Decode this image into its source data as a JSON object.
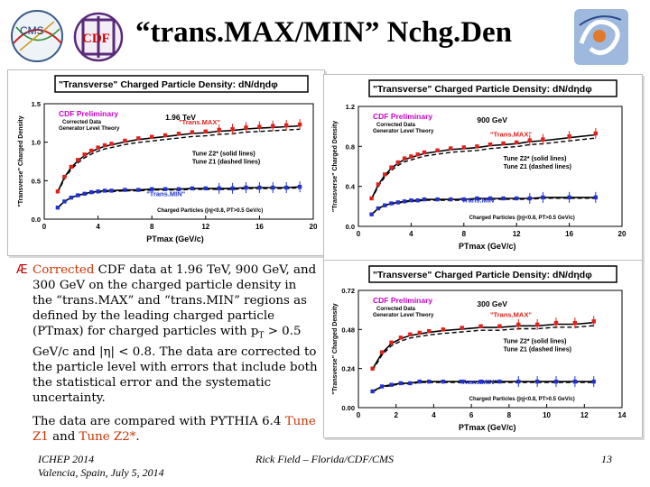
{
  "slide": {
    "title": "“trans.MAX/MIN” Nchg.Den",
    "logos": {
      "cms": "CMS",
      "cdf": "CDF"
    }
  },
  "body": {
    "bullet_symbol": "Æ",
    "p1_lead": "Corrected",
    "p1_rest": " CDF data at 1.96 TeV, 900 GeV, and 300 GeV on the charged particle density in the “trans.MAX” and “trans.MIN” regions as defined by the leading charged particle (PTmax) for charged particles with p",
    "p1_sub": "T",
    "p1_tail": " > 0.5 GeV/c and |η| < 0.8. The data are corrected to the particle level with errors that include both the statistical error and the systematic uncertainty.",
    "p2_lead": "The data are compared with PYTHIA 6.4 ",
    "p2_tune1": "Tune Z1",
    "p2_and": " and ",
    "p2_tune2": "Tune Z2*",
    "p2_end": "."
  },
  "footer": {
    "left_line1": "ICHEP 2014",
    "left_line2": "Valencia, Spain, July 5, 2014",
    "center": "Rick Field – Florida/CDF/CMS",
    "page": "13"
  },
  "colors": {
    "max": "#e0201a",
    "min": "#2233cc",
    "prelim": "#cc00cc",
    "frame": "#000000"
  },
  "chart_data": [
    {
      "type": "line",
      "title": "\"Transverse\" Charged Particle Density: dN/dηdφ",
      "energy": "1.96 TeV",
      "preliminary": "CDF Preliminary",
      "sub1": "Corrected Data",
      "sub2": "Generator Level Theory",
      "ylabel": "\"Transverse\" Charged Density",
      "xlabel": "PTmax  (GeV/c)",
      "xlim": [
        0,
        20
      ],
      "ylim": [
        0,
        1.5
      ],
      "xticks": [
        0,
        4,
        8,
        12,
        16,
        20
      ],
      "yticks": [
        0.0,
        0.5,
        1.0,
        1.5
      ],
      "ytick_labels": [
        "0.0",
        "0.5",
        "1.0",
        "1.5"
      ],
      "tune_solid": "Tune Z2* (solid lines)",
      "tune_dashed": "Tune Z1 (dashed lines)",
      "footnote": "Charged Particles (|η|<0.8, PT>0.5 GeV/c)",
      "label_max": "\"Trans.MAX\"",
      "label_min": "\"Trans.MIN\"",
      "series": [
        {
          "name": "\"Trans.MAX\"",
          "x": [
            1,
            1.5,
            2,
            2.5,
            3,
            3.5,
            4,
            4.5,
            5,
            6,
            7,
            8,
            9,
            10,
            11,
            12,
            13,
            14,
            15,
            16,
            17,
            18,
            19
          ],
          "y": [
            0.36,
            0.55,
            0.68,
            0.77,
            0.84,
            0.89,
            0.93,
            0.96,
            0.98,
            1.02,
            1.05,
            1.07,
            1.09,
            1.11,
            1.13,
            1.14,
            1.16,
            1.17,
            1.19,
            1.2,
            1.21,
            1.22,
            1.23
          ]
        },
        {
          "name": "\"Trans.MIN\"",
          "x": [
            1,
            1.5,
            2,
            2.5,
            3,
            3.5,
            4,
            4.5,
            5,
            6,
            7,
            8,
            9,
            10,
            11,
            12,
            13,
            14,
            15,
            16,
            17,
            18,
            19
          ],
          "y": [
            0.15,
            0.23,
            0.28,
            0.31,
            0.33,
            0.35,
            0.36,
            0.37,
            0.37,
            0.38,
            0.38,
            0.39,
            0.39,
            0.39,
            0.4,
            0.4,
            0.4,
            0.4,
            0.41,
            0.41,
            0.41,
            0.41,
            0.42
          ]
        }
      ]
    },
    {
      "type": "line",
      "title": "\"Transverse\" Charged Particle Density: dN/dηdφ",
      "energy": "900 GeV",
      "preliminary": "CDF Preliminary",
      "sub1": "Corrected Data",
      "sub2": "Generator Level Theory",
      "ylabel": "\"Transverse\" Charged Density",
      "xlabel": "PTmax  (GeV/c)",
      "xlim": [
        0,
        20
      ],
      "ylim": [
        0,
        1.2
      ],
      "xticks": [
        0,
        4,
        8,
        12,
        16,
        20
      ],
      "yticks": [
        0.0,
        0.4,
        0.8,
        1.2
      ],
      "ytick_labels": [
        "0.0",
        "0.4",
        "0.8",
        "1.2"
      ],
      "tune_solid": "Tune Z2* (solid lines)",
      "tune_dashed": "Tune Z1 (dashed lines)",
      "footnote": "Charged Particles (|η|<0.8, PT>0.5 GeV/c)",
      "label_max": "\"Trans.MAX\"",
      "label_min": "\"Trans.MIN\"",
      "series": [
        {
          "name": "\"Trans.MAX\"",
          "x": [
            1,
            1.5,
            2,
            2.5,
            3,
            3.5,
            4,
            4.5,
            5,
            6,
            7,
            8,
            9,
            10,
            11,
            12,
            13,
            14,
            16,
            18
          ],
          "y": [
            0.28,
            0.42,
            0.52,
            0.59,
            0.64,
            0.68,
            0.7,
            0.72,
            0.74,
            0.76,
            0.78,
            0.79,
            0.8,
            0.82,
            0.83,
            0.84,
            0.86,
            0.87,
            0.9,
            0.93
          ]
        },
        {
          "name": "\"Trans.MIN\"",
          "x": [
            1,
            1.5,
            2,
            2.5,
            3,
            3.5,
            4,
            4.5,
            5,
            6,
            7,
            8,
            9,
            10,
            11,
            12,
            13,
            14,
            16,
            18
          ],
          "y": [
            0.12,
            0.18,
            0.21,
            0.23,
            0.24,
            0.25,
            0.26,
            0.26,
            0.27,
            0.27,
            0.27,
            0.27,
            0.28,
            0.28,
            0.28,
            0.28,
            0.28,
            0.29,
            0.29,
            0.29
          ]
        }
      ]
    },
    {
      "type": "line",
      "title": "\"Transverse\" Charged Particle Density: dN/dηdφ",
      "energy": "300 GeV",
      "preliminary": "CDF Preliminary",
      "sub1": "Corrected Data",
      "sub2": "Generator Level Theory",
      "ylabel": "\"Transverse\" Charged Density",
      "xlabel": "PTmax  (GeV/c)",
      "xlim": [
        0,
        14
      ],
      "ylim": [
        0,
        0.72
      ],
      "xticks": [
        0,
        2,
        4,
        6,
        8,
        10,
        12,
        14
      ],
      "yticks": [
        0.0,
        0.24,
        0.48,
        0.72
      ],
      "ytick_labels": [
        "0.00",
        "0.24",
        "0.48",
        "0.72"
      ],
      "tune_solid": "Tune Z2* (solid lines)",
      "tune_dashed": "Tune Z1 (dashed lines)",
      "footnote": "Charged Particles (|η|<0.8, PT>0.5 GeV/c)",
      "label_max": "\"Trans.MAX\"",
      "label_min": "\"Trans.MIN\"",
      "series": [
        {
          "name": "\"Trans.MAX\"",
          "x": [
            0.75,
            1.25,
            1.75,
            2.25,
            2.75,
            3.25,
            3.75,
            4.5,
            5.5,
            6.5,
            7.5,
            8.5,
            9.5,
            10.5,
            11.5,
            12.5
          ],
          "y": [
            0.24,
            0.34,
            0.4,
            0.43,
            0.45,
            0.46,
            0.47,
            0.48,
            0.49,
            0.5,
            0.5,
            0.51,
            0.51,
            0.52,
            0.52,
            0.53
          ]
        },
        {
          "name": "\"Trans.MIN\"",
          "x": [
            0.75,
            1.25,
            1.75,
            2.25,
            2.75,
            3.25,
            3.75,
            4.5,
            5.5,
            6.5,
            7.5,
            8.5,
            9.5,
            10.5,
            11.5,
            12.5
          ],
          "y": [
            0.1,
            0.13,
            0.14,
            0.15,
            0.15,
            0.16,
            0.16,
            0.16,
            0.16,
            0.16,
            0.16,
            0.16,
            0.16,
            0.16,
            0.16,
            0.16
          ]
        }
      ]
    }
  ]
}
